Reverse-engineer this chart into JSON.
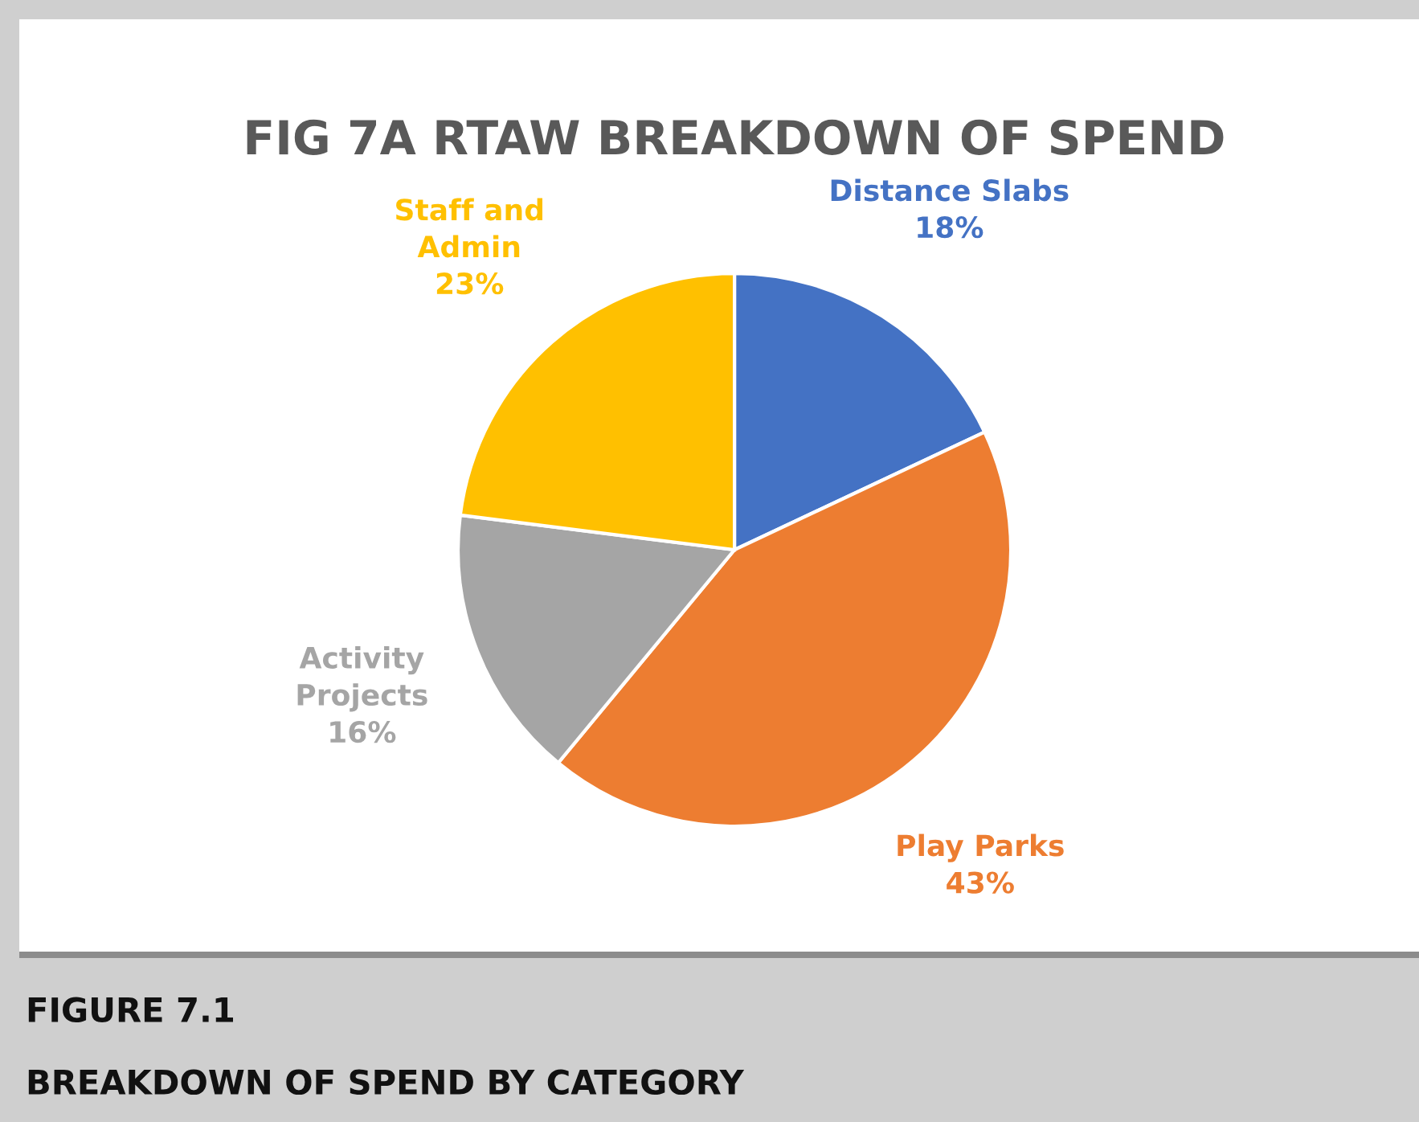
{
  "chart_data": {
    "type": "pie",
    "title": "FIG 7A RTAW BREAKDOWN OF SPEND",
    "categories": [
      "Distance Slabs",
      "Play Parks",
      "Activity\nProjects",
      "Staff and\nAdmin"
    ],
    "values": [
      18,
      43,
      16,
      23
    ],
    "colors": [
      "#4472c4",
      "#ed7d31",
      "#a5a5a5",
      "#ffc000"
    ],
    "value_labels": [
      "18%",
      "43%",
      "16%",
      "23%"
    ],
    "annotations": [
      "FIGURE 7.1",
      "BREAKDOWN OF SPEND BY CATEGORY"
    ]
  }
}
